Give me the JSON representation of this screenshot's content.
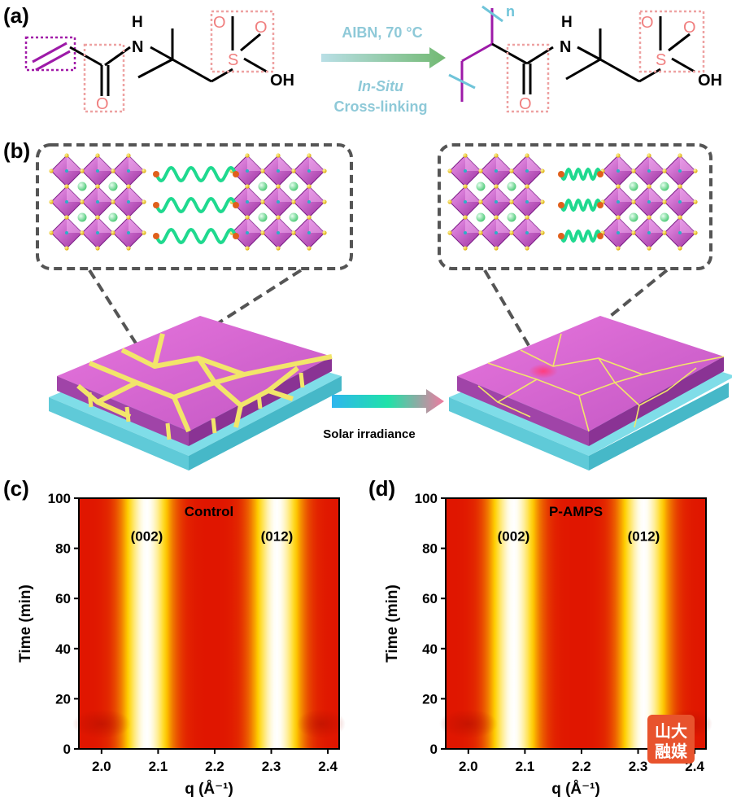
{
  "panels": {
    "a": {
      "label": "(a)",
      "reaction_condition": "AIBN, 70 °C",
      "process_line1": "In-Situ",
      "process_line2": "Cross-linking",
      "atoms": {
        "N": "N",
        "H": "H",
        "O": "O",
        "S": "S",
        "OH": "OH",
        "n": "n"
      }
    },
    "b": {
      "label": "(b)",
      "arrow_label": "Solar irradiance"
    },
    "c": {
      "label": "(c)",
      "title": "Control",
      "peak_labels": [
        "(002)",
        "(012)"
      ]
    },
    "d": {
      "label": "(d)",
      "title": "P-AMPS",
      "peak_labels": [
        "(002)",
        "(012)"
      ]
    }
  },
  "chart_data": [
    {
      "type": "heatmap",
      "title": "Control",
      "xlabel": "q (Å⁻¹)",
      "ylabel": "Time (min)",
      "xlim": [
        1.96,
        2.42
      ],
      "ylim": [
        0,
        100
      ],
      "x_ticks": [
        "2.0",
        "2.1",
        "2.2",
        "2.3",
        "2.4"
      ],
      "y_ticks": [
        "0",
        "20",
        "40",
        "60",
        "80",
        "100"
      ],
      "peaks": [
        {
          "label": "(002)",
          "q": 2.08,
          "time_min": [
            0,
            100
          ]
        },
        {
          "label": "(012)",
          "q": 2.31,
          "time_min": [
            0,
            100
          ]
        }
      ],
      "colors": {
        "low": "#e01600",
        "mid": "#ffd400",
        "high": "#ffffff"
      }
    },
    {
      "type": "heatmap",
      "title": "P-AMPS",
      "xlabel": "q (Å⁻¹)",
      "ylabel": "Time (min)",
      "xlim": [
        1.96,
        2.42
      ],
      "ylim": [
        0,
        100
      ],
      "x_ticks": [
        "2.0",
        "2.1",
        "2.2",
        "2.3",
        "2.4"
      ],
      "y_ticks": [
        "0",
        "20",
        "40",
        "60",
        "80",
        "100"
      ],
      "peaks": [
        {
          "label": "(002)",
          "q": 2.08,
          "time_min": [
            0,
            100
          ]
        },
        {
          "label": "(012)",
          "q": 2.31,
          "time_min": [
            0,
            100
          ]
        }
      ],
      "colors": {
        "low": "#e01600",
        "mid": "#ffd400",
        "high": "#ffffff"
      }
    }
  ]
}
